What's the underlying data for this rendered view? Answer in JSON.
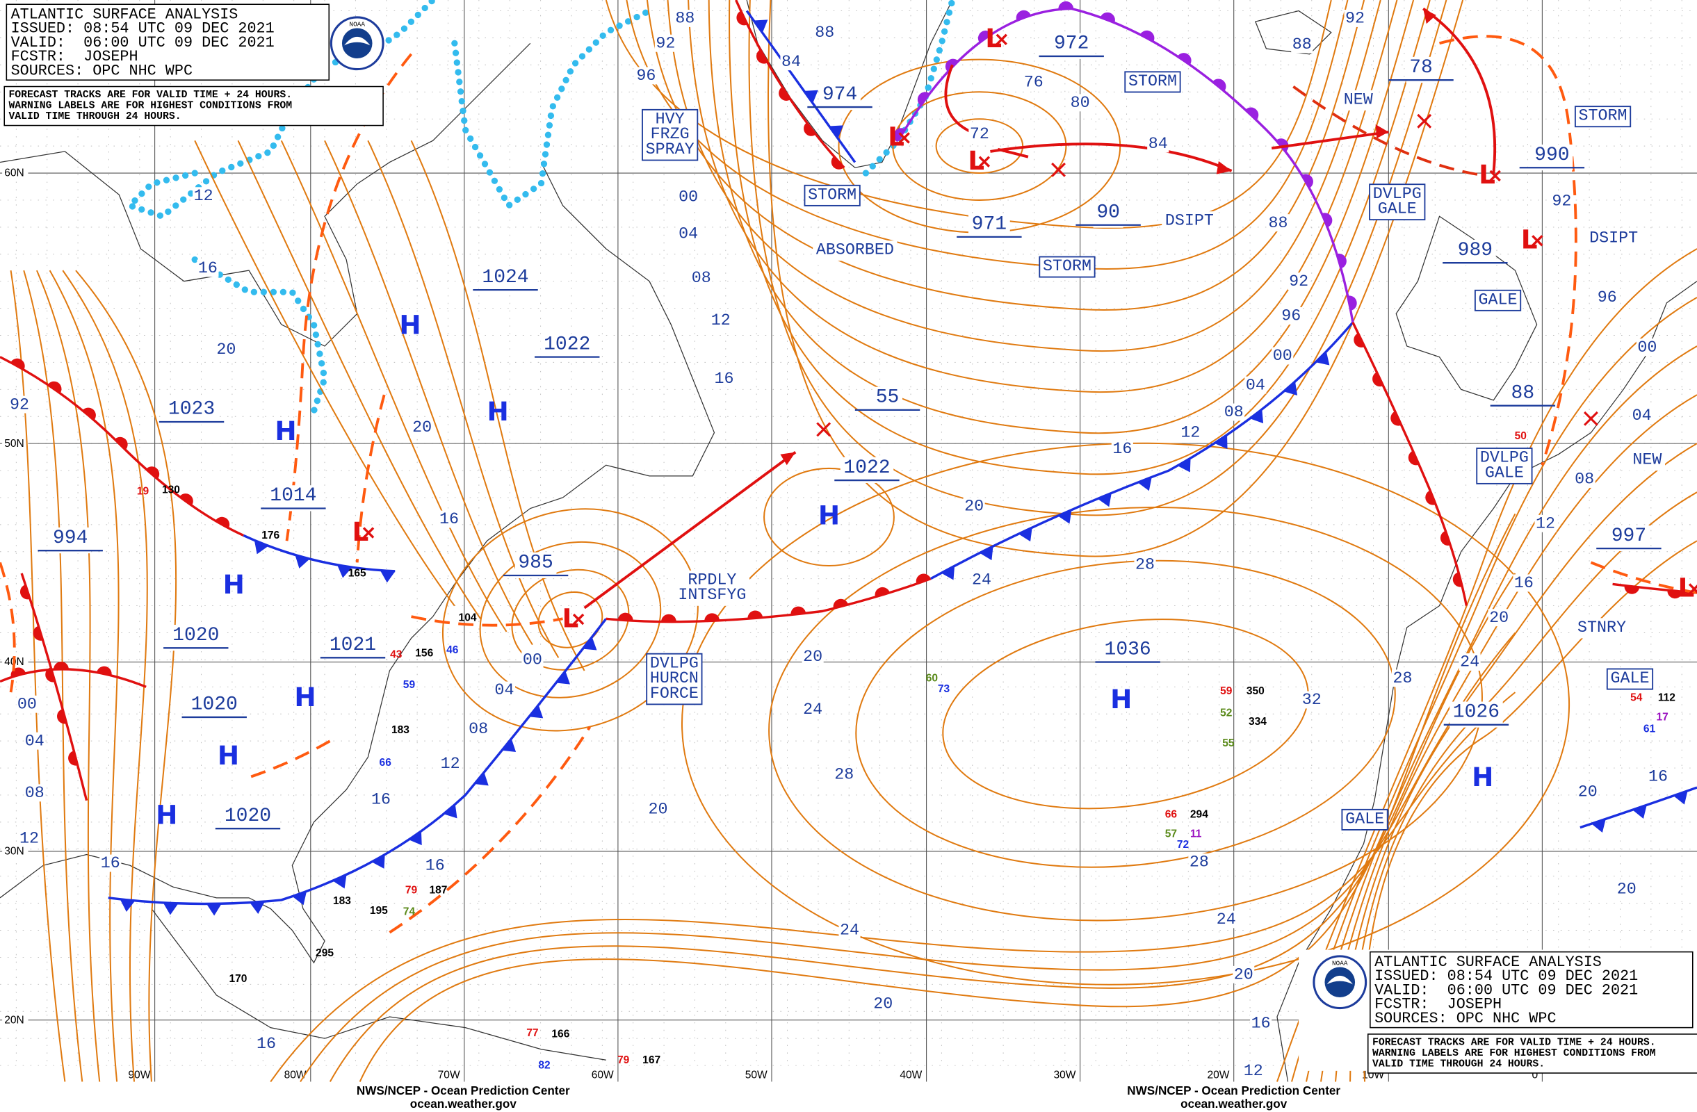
{
  "header": {
    "title": "ATLANTIC SURFACE ANALYSIS",
    "issued": "ISSUED: 08:54 UTC 09 DEC 2021",
    "valid": "VALID:  06:00 UTC 09 DEC 2021",
    "forecaster": "FCSTR:  JOSEPH",
    "sources": "SOURCES: OPC NHC WPC",
    "note": [
      "FORECAST TRACKS ARE FOR VALID TIME + 24 HOURS.",
      "WARNING LABELS ARE FOR HIGHEST CONDITIONS FROM",
      "VALID TIME THROUGH 24 HOURS."
    ],
    "logo": "NOAA"
  },
  "footer": {
    "agency": "NWS/NCEP - Ocean Prediction Center",
    "site": "ocean.weather.gov"
  },
  "latitudes": [
    "60N",
    "50N",
    "40N",
    "30N",
    "20N"
  ],
  "longitudes": [
    "90W",
    "80W",
    "70W",
    "60W",
    "50W",
    "40W",
    "30W",
    "20W",
    "10W",
    "0"
  ],
  "pressure_centers": [
    "974",
    "972",
    "971",
    "90",
    "1024",
    "1022",
    "1023",
    "1014",
    "994",
    "985",
    "1020",
    "1021",
    "1020",
    "1020",
    "55",
    "1022",
    "1036",
    "78",
    "990",
    "989",
    "88",
    "997",
    "1026"
  ],
  "highs": [
    "H",
    "H",
    "H",
    "H",
    "H",
    "H",
    "H",
    "H",
    "H",
    "H"
  ],
  "lows": [
    "L",
    "L",
    "L",
    "L",
    "L",
    "L",
    "L",
    "L"
  ],
  "warnings": [
    {
      "lines": [
        "HVY",
        "FRZG",
        "SPRAY"
      ],
      "boxed": true
    },
    {
      "lines": [
        "STORM"
      ],
      "boxed": true
    },
    {
      "lines": [
        "STORM"
      ],
      "boxed": true
    },
    {
      "lines": [
        "STORM"
      ],
      "boxed": true
    },
    {
      "lines": [
        "STORM"
      ],
      "boxed": true
    },
    {
      "lines": [
        "DVLPG",
        "GALE"
      ],
      "boxed": true
    },
    {
      "lines": [
        "GALE"
      ],
      "boxed": true
    },
    {
      "lines": [
        "DVLPG",
        "GALE"
      ],
      "boxed": true
    },
    {
      "lines": [
        "GALE"
      ],
      "boxed": true
    },
    {
      "lines": [
        "GALE"
      ],
      "boxed": true
    },
    {
      "lines": [
        "DVLPG",
        "HURCN",
        "FORCE"
      ],
      "boxed": true
    },
    {
      "lines": [
        "ABSORBED"
      ],
      "boxed": false
    },
    {
      "lines": [
        "DSIPT"
      ],
      "boxed": false
    },
    {
      "lines": [
        "DSIPT"
      ],
      "boxed": false
    },
    {
      "lines": [
        "NEW"
      ],
      "boxed": false
    },
    {
      "lines": [
        "NEW"
      ],
      "boxed": false
    },
    {
      "lines": [
        "RPDLY",
        "INTSFYG"
      ],
      "boxed": false
    },
    {
      "lines": [
        "STNRY"
      ],
      "boxed": false
    }
  ],
  "isobar_labels": [
    "88",
    "92",
    "96",
    "84",
    "88",
    "76",
    "80",
    "72",
    "84",
    "88",
    "92",
    "88",
    "92",
    "96",
    "00",
    "04",
    "08",
    "12",
    "16",
    "20",
    "24",
    "28",
    "32",
    "28",
    "24",
    "20",
    "16",
    "12",
    "08",
    "04",
    "00",
    "96",
    "92",
    "00",
    "04",
    "08",
    "12",
    "16",
    "20",
    "16",
    "12",
    "16",
    "20",
    "92",
    "00",
    "04",
    "08",
    "12",
    "16",
    "00",
    "04",
    "08",
    "12",
    "16",
    "16",
    "20",
    "20",
    "24",
    "28",
    "24",
    "20",
    "28",
    "24",
    "20",
    "16",
    "12",
    "16",
    "20",
    "16",
    "20"
  ],
  "stations": [
    {
      "text": "187",
      "color": "#000000"
    },
    {
      "text": "195",
      "color": "#000000"
    },
    {
      "text": "183",
      "color": "#000000"
    },
    {
      "text": "156",
      "color": "#000000"
    },
    {
      "text": "104",
      "color": "#000000"
    },
    {
      "text": "165",
      "color": "#000000"
    },
    {
      "text": "176",
      "color": "#000000"
    },
    {
      "text": "130",
      "color": "#000000"
    },
    {
      "text": "350",
      "color": "#000000"
    },
    {
      "text": "334",
      "color": "#000000"
    },
    {
      "text": "294",
      "color": "#000000"
    },
    {
      "text": "112",
      "color": "#000000"
    },
    {
      "text": "166",
      "color": "#000000"
    },
    {
      "text": "167",
      "color": "#000000"
    },
    {
      "text": "170",
      "color": "#000000"
    },
    {
      "text": "295",
      "color": "#000000"
    },
    {
      "text": "183",
      "color": "#000000"
    },
    {
      "text": "79",
      "color": "#e01010"
    },
    {
      "text": "59",
      "color": "#e01010"
    },
    {
      "text": "66",
      "color": "#e01010"
    },
    {
      "text": "54",
      "color": "#e01010"
    },
    {
      "text": "50",
      "color": "#e01010"
    },
    {
      "text": "77",
      "color": "#e01010"
    },
    {
      "text": "79",
      "color": "#e01010"
    },
    {
      "text": "43",
      "color": "#e01010"
    },
    {
      "text": "19",
      "color": "#e01010"
    },
    {
      "text": "59",
      "color": "#1a2fe0"
    },
    {
      "text": "66",
      "color": "#1a2fe0"
    },
    {
      "text": "73",
      "color": "#1a2fe0"
    },
    {
      "text": "72",
      "color": "#1a2fe0"
    },
    {
      "text": "61",
      "color": "#1a2fe0"
    },
    {
      "text": "82",
      "color": "#1a2fe0"
    },
    {
      "text": "46",
      "color": "#1a2fe0"
    },
    {
      "text": "52",
      "color": "#5a8a1a"
    },
    {
      "text": "55",
      "color": "#5a8a1a"
    },
    {
      "text": "57",
      "color": "#5a8a1a"
    },
    {
      "text": "60",
      "color": "#5a8a1a"
    },
    {
      "text": "74",
      "color": "#5a8a1a"
    },
    {
      "text": "11",
      "color": "#9a10c0"
    },
    {
      "text": "17",
      "color": "#9a10c0"
    }
  ]
}
